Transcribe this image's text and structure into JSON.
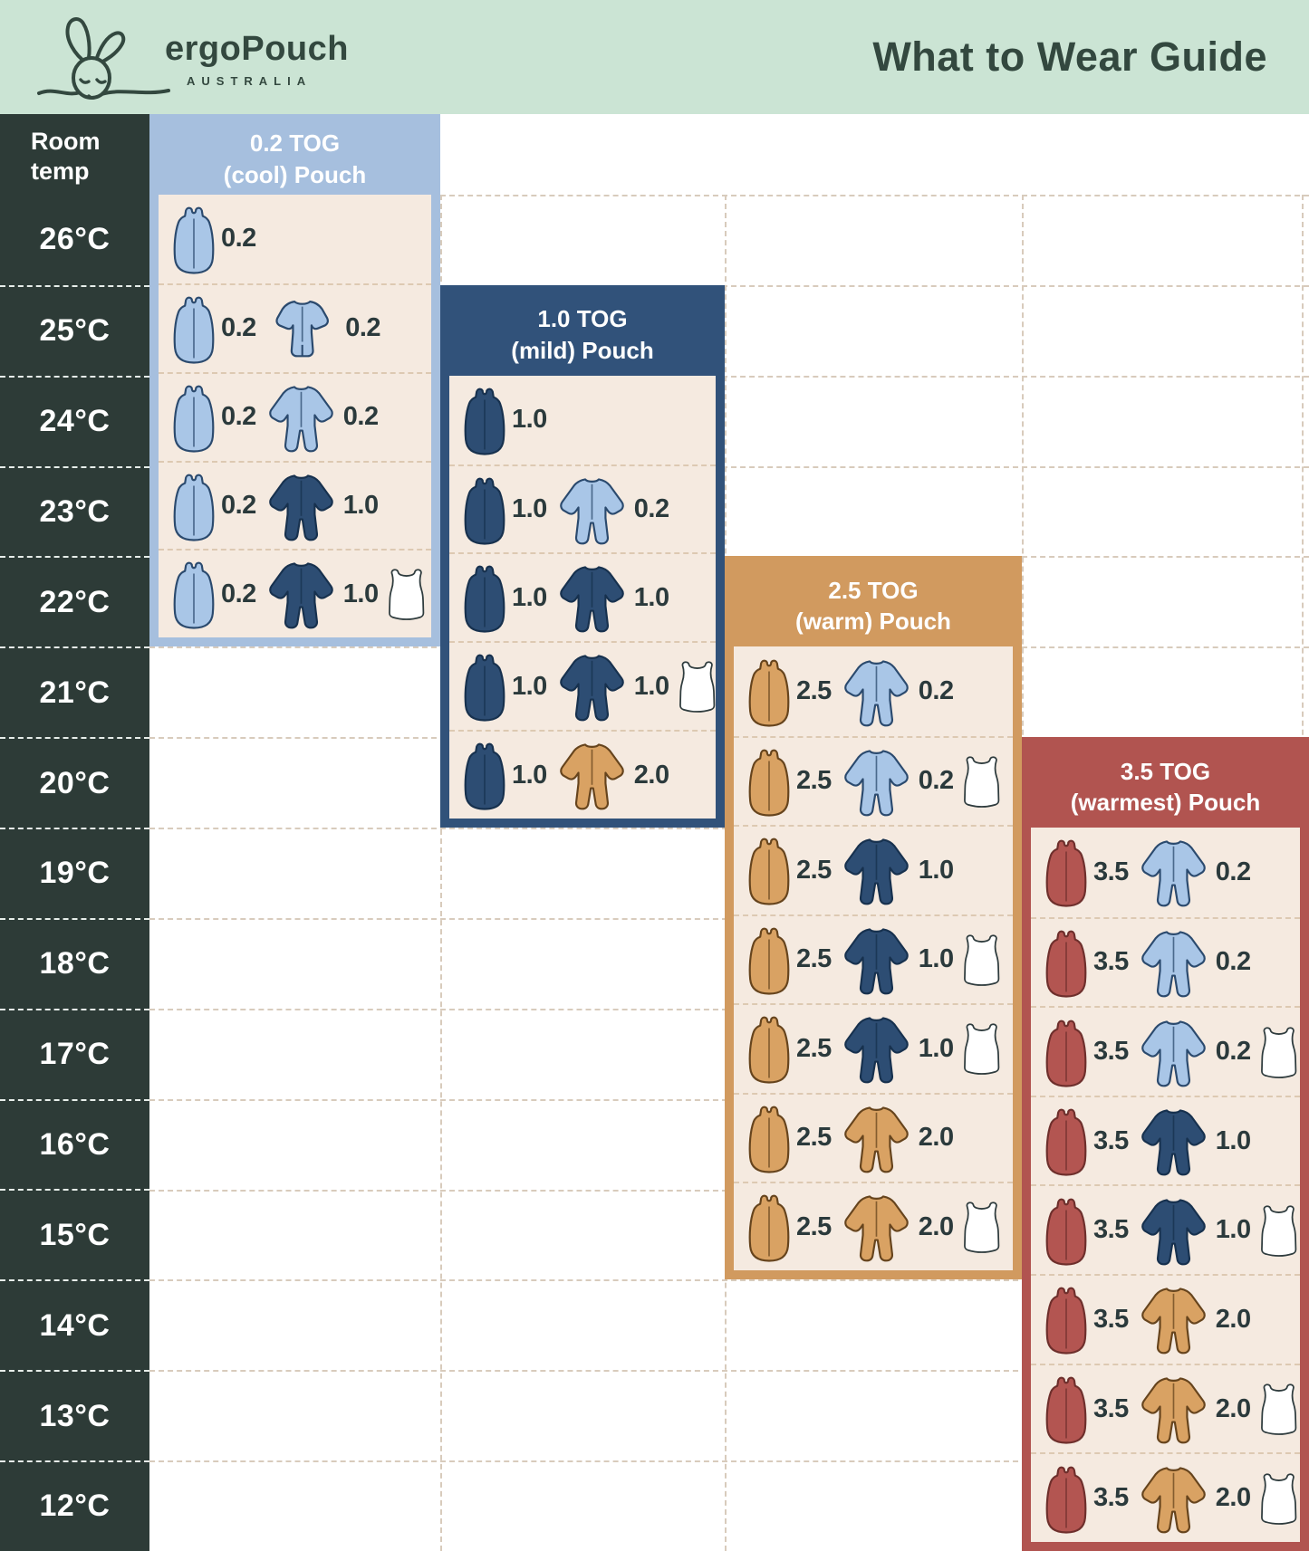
{
  "header": {
    "brand": "ergoPouch",
    "brand_sub": "AUSTRALIA",
    "title": "What to Wear Guide"
  },
  "temperature_column": {
    "header": "Room temp",
    "temps": [
      "26°C",
      "25°C",
      "24°C",
      "23°C",
      "22°C",
      "21°C",
      "20°C",
      "19°C",
      "18°C",
      "17°C",
      "16°C",
      "15°C",
      "14°C",
      "13°C",
      "12°C"
    ]
  },
  "colors": {
    "mint": "#cbe4d4",
    "inkGreen": "#33483f",
    "tempBg": "#2d3b37",
    "cream": "#f5eae0",
    "colLightBlue": "#a6bfde",
    "colNavy": "#31527a",
    "colTan": "#d19a5f",
    "colRed": "#b15450",
    "gLightBlue": "#a9c6e7",
    "gNavy": "#2d4d73",
    "gTan": "#d9a263",
    "gRed": "#b35551",
    "gWhite": "#ffffff",
    "valText": "#2b3a3c",
    "dashWhiteArea": "#d8cbbc",
    "dashCream": "#ddc9b2",
    "dashDark": "#e7eeea"
  },
  "outlines": {
    "gLightBlue": "#2b4a6e",
    "gNavy": "#17314e",
    "gTan": "#66441d",
    "gRed": "#6e2f2c",
    "gWhite": "#2f3c3e"
  },
  "columns": [
    {
      "id": "tog-0-2",
      "title_line1": "0.2 TOG",
      "title_line2": "(cool) Pouch",
      "theme": "colLightBlue",
      "rows": [
        {
          "temp": "26°C",
          "items": [
            {
              "icon": "sleep-bag",
              "fill": "gLightBlue",
              "value": "0.2"
            }
          ]
        },
        {
          "temp": "25°C",
          "items": [
            {
              "icon": "sleep-bag",
              "fill": "gLightBlue",
              "value": "0.2"
            },
            {
              "icon": "romper",
              "fill": "gLightBlue",
              "value": "0.2"
            }
          ]
        },
        {
          "temp": "24°C",
          "items": [
            {
              "icon": "sleep-bag",
              "fill": "gLightBlue",
              "value": "0.2"
            },
            {
              "icon": "onesie",
              "fill": "gLightBlue",
              "value": "0.2"
            }
          ]
        },
        {
          "temp": "23°C",
          "items": [
            {
              "icon": "sleep-bag",
              "fill": "gLightBlue",
              "value": "0.2"
            },
            {
              "icon": "onesie",
              "fill": "gNavy",
              "value": "1.0"
            }
          ]
        },
        {
          "temp": "22°C",
          "items": [
            {
              "icon": "sleep-bag",
              "fill": "gLightBlue",
              "value": "0.2"
            },
            {
              "icon": "onesie",
              "fill": "gNavy",
              "value": "1.0"
            },
            {
              "icon": "singlet",
              "fill": "gWhite"
            }
          ]
        }
      ]
    },
    {
      "id": "tog-1-0",
      "title_line1": "1.0 TOG",
      "title_line2": "(mild) Pouch",
      "theme": "colNavy",
      "rows": [
        {
          "temp": "24°C",
          "items": [
            {
              "icon": "sleep-bag",
              "fill": "gNavy",
              "value": "1.0"
            }
          ]
        },
        {
          "temp": "23°C",
          "items": [
            {
              "icon": "sleep-bag",
              "fill": "gNavy",
              "value": "1.0"
            },
            {
              "icon": "onesie",
              "fill": "gLightBlue",
              "value": "0.2"
            }
          ]
        },
        {
          "temp": "22°C",
          "items": [
            {
              "icon": "sleep-bag",
              "fill": "gNavy",
              "value": "1.0"
            },
            {
              "icon": "onesie",
              "fill": "gNavy",
              "value": "1.0"
            }
          ]
        },
        {
          "temp": "21°C",
          "items": [
            {
              "icon": "sleep-bag",
              "fill": "gNavy",
              "value": "1.0"
            },
            {
              "icon": "onesie",
              "fill": "gNavy",
              "value": "1.0"
            },
            {
              "icon": "singlet",
              "fill": "gWhite"
            }
          ]
        },
        {
          "temp": "20°C",
          "items": [
            {
              "icon": "sleep-bag",
              "fill": "gNavy",
              "value": "1.0"
            },
            {
              "icon": "onesie",
              "fill": "gTan",
              "value": "2.0"
            }
          ]
        }
      ]
    },
    {
      "id": "tog-2-5",
      "title_line1": "2.5 TOG",
      "title_line2": "(warm) Pouch",
      "theme": "colTan",
      "rows": [
        {
          "temp": "21°C",
          "items": [
            {
              "icon": "sleep-bag",
              "fill": "gTan",
              "value": "2.5"
            },
            {
              "icon": "onesie",
              "fill": "gLightBlue",
              "value": "0.2"
            }
          ]
        },
        {
          "temp": "20°C",
          "items": [
            {
              "icon": "sleep-bag",
              "fill": "gTan",
              "value": "2.5"
            },
            {
              "icon": "onesie",
              "fill": "gLightBlue",
              "value": "0.2"
            },
            {
              "icon": "singlet",
              "fill": "gWhite"
            }
          ]
        },
        {
          "temp": "19°C",
          "items": [
            {
              "icon": "sleep-bag",
              "fill": "gTan",
              "value": "2.5"
            },
            {
              "icon": "onesie",
              "fill": "gNavy",
              "value": "1.0"
            }
          ]
        },
        {
          "temp": "18°C",
          "items": [
            {
              "icon": "sleep-bag",
              "fill": "gTan",
              "value": "2.5"
            },
            {
              "icon": "onesie",
              "fill": "gNavy",
              "value": "1.0"
            },
            {
              "icon": "singlet",
              "fill": "gWhite"
            }
          ]
        },
        {
          "temp": "17°C",
          "items": [
            {
              "icon": "sleep-bag",
              "fill": "gTan",
              "value": "2.5"
            },
            {
              "icon": "onesie",
              "fill": "gNavy",
              "value": "1.0"
            },
            {
              "icon": "singlet",
              "fill": "gWhite"
            }
          ]
        },
        {
          "temp": "16°C",
          "items": [
            {
              "icon": "sleep-bag",
              "fill": "gTan",
              "value": "2.5"
            },
            {
              "icon": "onesie",
              "fill": "gTan",
              "value": "2.0"
            }
          ]
        },
        {
          "temp": "15°C",
          "items": [
            {
              "icon": "sleep-bag",
              "fill": "gTan",
              "value": "2.5"
            },
            {
              "icon": "onesie",
              "fill": "gTan",
              "value": "2.0"
            },
            {
              "icon": "singlet",
              "fill": "gWhite"
            }
          ]
        }
      ]
    },
    {
      "id": "tog-3-5",
      "title_line1": "3.5 TOG",
      "title_line2": "(warmest) Pouch",
      "theme": "colRed",
      "rows": [
        {
          "temp": "19°C",
          "items": [
            {
              "icon": "sleep-bag",
              "fill": "gRed",
              "value": "3.5"
            },
            {
              "icon": "onesie",
              "fill": "gLightBlue",
              "value": "0.2"
            }
          ]
        },
        {
          "temp": "18°C",
          "items": [
            {
              "icon": "sleep-bag",
              "fill": "gRed",
              "value": "3.5"
            },
            {
              "icon": "onesie",
              "fill": "gLightBlue",
              "value": "0.2"
            }
          ]
        },
        {
          "temp": "17°C",
          "items": [
            {
              "icon": "sleep-bag",
              "fill": "gRed",
              "value": "3.5"
            },
            {
              "icon": "onesie",
              "fill": "gLightBlue",
              "value": "0.2"
            },
            {
              "icon": "singlet",
              "fill": "gWhite"
            }
          ]
        },
        {
          "temp": "16°C",
          "items": [
            {
              "icon": "sleep-bag",
              "fill": "gRed",
              "value": "3.5"
            },
            {
              "icon": "onesie",
              "fill": "gNavy",
              "value": "1.0"
            }
          ]
        },
        {
          "temp": "15°C",
          "items": [
            {
              "icon": "sleep-bag",
              "fill": "gRed",
              "value": "3.5"
            },
            {
              "icon": "onesie",
              "fill": "gNavy",
              "value": "1.0"
            },
            {
              "icon": "singlet",
              "fill": "gWhite"
            }
          ]
        },
        {
          "temp": "14°C",
          "items": [
            {
              "icon": "sleep-bag",
              "fill": "gRed",
              "value": "3.5"
            },
            {
              "icon": "onesie",
              "fill": "gTan",
              "value": "2.0"
            }
          ]
        },
        {
          "temp": "13°C",
          "items": [
            {
              "icon": "sleep-bag",
              "fill": "gRed",
              "value": "3.5"
            },
            {
              "icon": "onesie",
              "fill": "gTan",
              "value": "2.0"
            },
            {
              "icon": "singlet",
              "fill": "gWhite"
            }
          ]
        },
        {
          "temp": "12°C",
          "items": [
            {
              "icon": "sleep-bag",
              "fill": "gRed",
              "value": "3.5"
            },
            {
              "icon": "onesie",
              "fill": "gTan",
              "value": "2.0"
            },
            {
              "icon": "singlet",
              "fill": "gWhite"
            }
          ]
        }
      ]
    }
  ]
}
